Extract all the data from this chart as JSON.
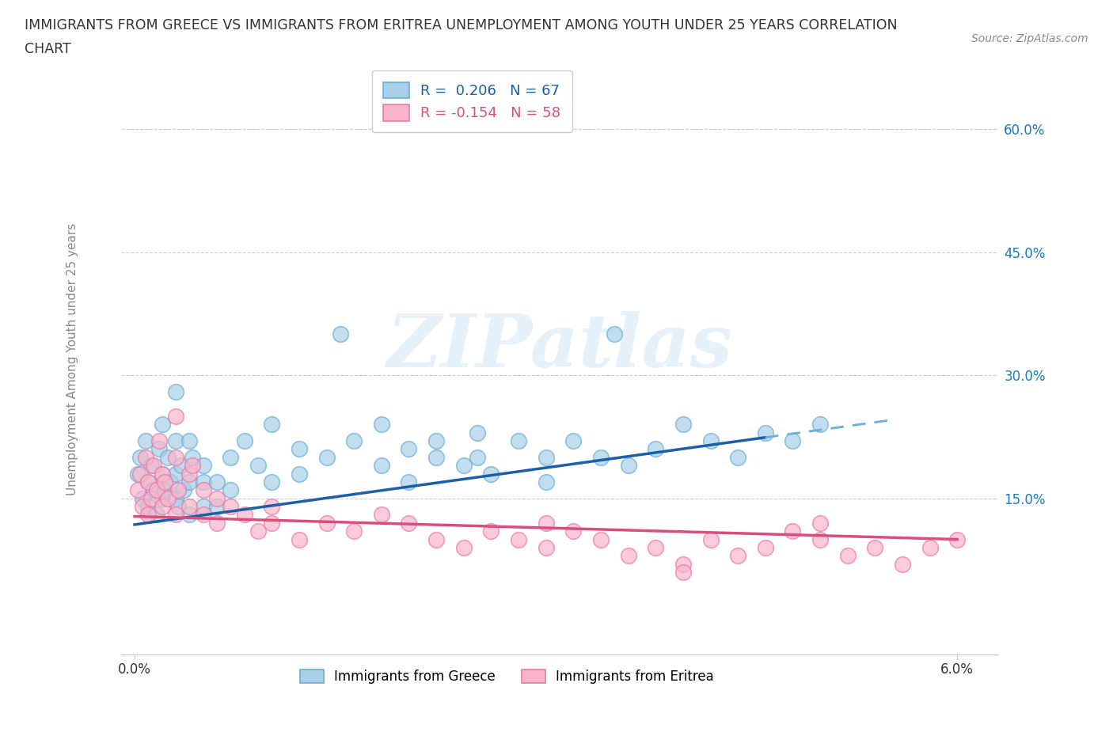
{
  "title_line1": "IMMIGRANTS FROM GREECE VS IMMIGRANTS FROM ERITREA UNEMPLOYMENT AMONG YOUTH UNDER 25 YEARS CORRELATION",
  "title_line2": "CHART",
  "source_text": "Source: ZipAtlas.com",
  "ylabel": "Unemployment Among Youth under 25 years",
  "y_tick_labels": [
    "15.0%",
    "30.0%",
    "45.0%",
    "60.0%"
  ],
  "y_tick_values": [
    0.15,
    0.3,
    0.45,
    0.6
  ],
  "xlim": [
    -0.001,
    0.063
  ],
  "ylim": [
    -0.04,
    0.68
  ],
  "greece_R": 0.206,
  "greece_N": 67,
  "eritrea_R": -0.154,
  "eritrea_N": 58,
  "greece_dot_color": "#a8cfe8",
  "greece_edge_color": "#6baed6",
  "eritrea_dot_color": "#fbb4c9",
  "eritrea_edge_color": "#e87aaa",
  "trend_greece_color": "#1a5fa8",
  "trend_eritrea_color": "#d94f7a",
  "trend_dashed_color": "#6baed6",
  "watermark": "ZIPatlas",
  "greece_trend_x0": 0.0,
  "greece_trend_y0": 0.118,
  "greece_trend_x1": 0.055,
  "greece_trend_y1": 0.245,
  "greece_trend_solid_end": 0.046,
  "eritrea_trend_x0": 0.0,
  "eritrea_trend_y0": 0.128,
  "eritrea_trend_x1": 0.06,
  "eritrea_trend_y1": 0.1,
  "greece_scatter_x": [
    0.0002,
    0.0004,
    0.0006,
    0.0008,
    0.001,
    0.001,
    0.0012,
    0.0014,
    0.0016,
    0.0018,
    0.002,
    0.002,
    0.002,
    0.0022,
    0.0024,
    0.0026,
    0.003,
    0.003,
    0.003,
    0.003,
    0.0032,
    0.0034,
    0.0036,
    0.004,
    0.004,
    0.004,
    0.0042,
    0.005,
    0.005,
    0.005,
    0.006,
    0.006,
    0.007,
    0.007,
    0.008,
    0.009,
    0.01,
    0.01,
    0.012,
    0.012,
    0.014,
    0.015,
    0.016,
    0.018,
    0.018,
    0.02,
    0.02,
    0.022,
    0.022,
    0.024,
    0.025,
    0.025,
    0.026,
    0.028,
    0.03,
    0.03,
    0.032,
    0.034,
    0.035,
    0.036,
    0.038,
    0.04,
    0.042,
    0.044,
    0.046,
    0.048,
    0.05
  ],
  "greece_scatter_y": [
    0.18,
    0.2,
    0.15,
    0.22,
    0.17,
    0.14,
    0.19,
    0.16,
    0.13,
    0.21,
    0.18,
    0.15,
    0.24,
    0.16,
    0.2,
    0.17,
    0.15,
    0.22,
    0.18,
    0.28,
    0.14,
    0.19,
    0.16,
    0.22,
    0.17,
    0.13,
    0.2,
    0.17,
    0.14,
    0.19,
    0.17,
    0.14,
    0.2,
    0.16,
    0.22,
    0.19,
    0.17,
    0.24,
    0.18,
    0.21,
    0.2,
    0.35,
    0.22,
    0.19,
    0.24,
    0.21,
    0.17,
    0.22,
    0.2,
    0.19,
    0.2,
    0.23,
    0.18,
    0.22,
    0.2,
    0.17,
    0.22,
    0.2,
    0.35,
    0.19,
    0.21,
    0.24,
    0.22,
    0.2,
    0.23,
    0.22,
    0.24
  ],
  "eritrea_scatter_x": [
    0.0002,
    0.0004,
    0.0006,
    0.0008,
    0.001,
    0.001,
    0.0012,
    0.0014,
    0.0016,
    0.0018,
    0.002,
    0.002,
    0.0022,
    0.0024,
    0.003,
    0.003,
    0.003,
    0.0032,
    0.004,
    0.004,
    0.0042,
    0.005,
    0.005,
    0.006,
    0.006,
    0.007,
    0.008,
    0.009,
    0.01,
    0.01,
    0.012,
    0.014,
    0.016,
    0.018,
    0.02,
    0.022,
    0.024,
    0.026,
    0.028,
    0.03,
    0.03,
    0.032,
    0.034,
    0.036,
    0.038,
    0.04,
    0.042,
    0.044,
    0.046,
    0.048,
    0.05,
    0.052,
    0.054,
    0.056,
    0.058,
    0.06,
    0.04,
    0.05
  ],
  "eritrea_scatter_y": [
    0.16,
    0.18,
    0.14,
    0.2,
    0.17,
    0.13,
    0.15,
    0.19,
    0.16,
    0.22,
    0.14,
    0.18,
    0.17,
    0.15,
    0.2,
    0.25,
    0.13,
    0.16,
    0.18,
    0.14,
    0.19,
    0.16,
    0.13,
    0.15,
    0.12,
    0.14,
    0.13,
    0.11,
    0.14,
    0.12,
    0.1,
    0.12,
    0.11,
    0.13,
    0.12,
    0.1,
    0.09,
    0.11,
    0.1,
    0.12,
    0.09,
    0.11,
    0.1,
    0.08,
    0.09,
    0.07,
    0.1,
    0.08,
    0.09,
    0.11,
    0.1,
    0.08,
    0.09,
    0.07,
    0.09,
    0.1,
    0.06,
    0.12
  ]
}
